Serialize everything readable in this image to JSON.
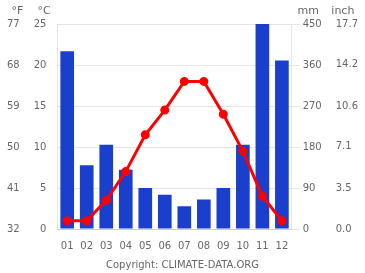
{
  "chart_data": {
    "type": "bar",
    "categories": [
      "01",
      "02",
      "03",
      "04",
      "05",
      "06",
      "07",
      "08",
      "09",
      "10",
      "11",
      "12"
    ],
    "series": [
      {
        "type": "bar",
        "color": "#1a3fcc",
        "axis": "y2",
        "values": [
          390,
          140,
          185,
          130,
          90,
          75,
          50,
          65,
          90,
          185,
          450,
          370
        ]
      },
      {
        "type": "line",
        "color": "#ff0000",
        "marker": "circle",
        "axis": "y",
        "values": [
          1.0,
          1.0,
          3.5,
          7.0,
          11.5,
          14.5,
          18.0,
          18.0,
          14.0,
          9.5,
          4.0,
          1.0
        ]
      }
    ],
    "ylabel": "°C",
    "ylim": [
      0,
      25
    ],
    "yticks": [
      0,
      5,
      10,
      15,
      20,
      25
    ],
    "y2label": "mm",
    "y2lim": [
      0,
      450
    ],
    "y2ticks": [
      0,
      90,
      180,
      270,
      360,
      450
    ],
    "y3label": "°F",
    "y3lim": [
      32,
      77
    ],
    "y3ticks": [
      32,
      41,
      50,
      59,
      68,
      77
    ],
    "y4label": "inch",
    "y4lim": [
      0,
      17.7
    ],
    "y4ticks": [
      {
        "value": 0,
        "label": "0.0"
      },
      3.5,
      7.1,
      10.6,
      14.2,
      17.7
    ],
    "grid": true,
    "annotation": "Copyright: CLIMATE-DATA.ORG"
  }
}
